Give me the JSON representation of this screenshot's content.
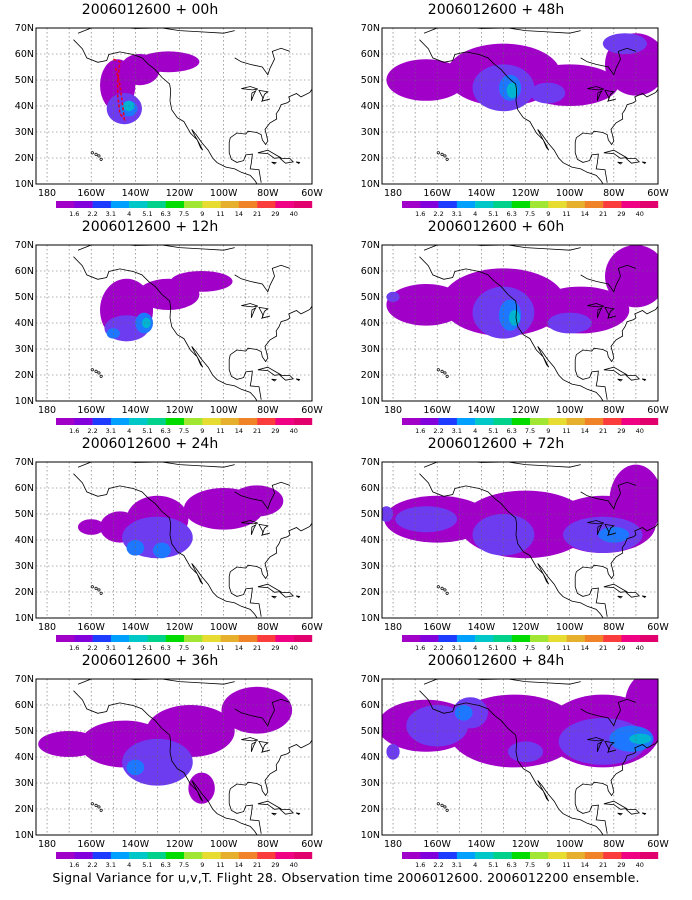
{
  "map_panels": [
    {
      "title": "2006012600 + 00h",
      "forecast_hour": 0
    },
    {
      "title": "2006012600 + 48h",
      "forecast_hour": 48
    },
    {
      "title": "2006012600 + 12h",
      "forecast_hour": 12
    },
    {
      "title": "2006012600 + 60h",
      "forecast_hour": 60
    },
    {
      "title": "2006012600 + 24h",
      "forecast_hour": 24
    },
    {
      "title": "2006012600 + 72h",
      "forecast_hour": 72
    },
    {
      "title": "2006012600 + 36h",
      "forecast_hour": 36
    },
    {
      "title": "2006012600 + 84h",
      "forecast_hour": 84
    }
  ],
  "axes": {
    "lon_labels": [
      "180",
      "160W",
      "140W",
      "120W",
      "100W",
      "80W",
      "60W"
    ],
    "lat_labels": [
      "70N",
      "60N",
      "50N",
      "40N",
      "30N",
      "20N",
      "10N"
    ],
    "lon_range": [
      -185,
      -60
    ],
    "lat_range": [
      10,
      70
    ]
  },
  "colorbar": {
    "labels": [
      "1.6",
      "2.2",
      "3.1",
      "4",
      "5.1",
      "6.3",
      "7.5",
      "9",
      "11",
      "14",
      "21",
      "29",
      "40"
    ],
    "colors": [
      "#a000c8",
      "#8200dc",
      "#1e3cff",
      "#00a0ff",
      "#00c8c8",
      "#00d28c",
      "#00dc00",
      "#a0e632",
      "#e6dc32",
      "#e6af2d",
      "#f08228",
      "#fa3c3c",
      "#f00082",
      "#e1006e"
    ]
  },
  "shading_colors": {
    "low": "#a000c8",
    "mid": "#6e3cf0",
    "high": "#1e78ff",
    "peak": "#00b4d2"
  },
  "flight_track_color": "#e6001e",
  "caption": "Signal Variance for u,v,T. Flight 28. Observation time 2006012600. 2006012200 ensemble."
}
